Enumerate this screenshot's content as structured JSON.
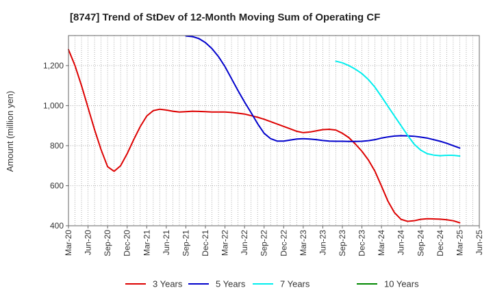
{
  "chart_data": {
    "type": "line",
    "title": "[8747]  Trend of StDev of 12-Month Moving Sum of Operating CF",
    "ylabel": "Amount (million yen)",
    "xlabel": "",
    "ylim": [
      400,
      1350
    ],
    "yticks": [
      400,
      600,
      800,
      "1,000",
      "1,200"
    ],
    "ytick_values": [
      400,
      600,
      800,
      1000,
      1200
    ],
    "xticks": [
      "Mar-20",
      "Jun-20",
      "Sep-20",
      "Dec-20",
      "Mar-21",
      "Jun-21",
      "Sep-21",
      "Dec-21",
      "Mar-22",
      "Jun-22",
      "Sep-22",
      "Dec-22",
      "Mar-23",
      "Jun-23",
      "Sep-23",
      "Dec-23",
      "Mar-24",
      "Jun-24",
      "Sep-24",
      "Dec-24",
      "Mar-25",
      "Jun-25"
    ],
    "grid": true,
    "legend_position": "bottom",
    "series": [
      {
        "name": "3 Years",
        "color": "#dd0000",
        "points": [
          [
            "Mar-20",
            1280
          ],
          [
            "Apr-20",
            1200
          ],
          [
            "May-20",
            1100
          ],
          [
            "Jun-20",
            990
          ],
          [
            "Jul-20",
            880
          ],
          [
            "Aug-20",
            780
          ],
          [
            "Sep-20",
            695
          ],
          [
            "Oct-20",
            672
          ],
          [
            "Nov-20",
            700
          ],
          [
            "Dec-20",
            760
          ],
          [
            "Jan-21",
            830
          ],
          [
            "Feb-21",
            895
          ],
          [
            "Mar-21",
            948
          ],
          [
            "Apr-21",
            975
          ],
          [
            "May-21",
            982
          ],
          [
            "Jun-21",
            978
          ],
          [
            "Jul-21",
            972
          ],
          [
            "Aug-21",
            968
          ],
          [
            "Sep-21",
            970
          ],
          [
            "Oct-21",
            972
          ],
          [
            "Nov-21",
            971
          ],
          [
            "Dec-21",
            970
          ],
          [
            "Jan-22",
            968
          ],
          [
            "Feb-22",
            968
          ],
          [
            "Mar-22",
            968
          ],
          [
            "Apr-22",
            966
          ],
          [
            "May-22",
            962
          ],
          [
            "Jun-22",
            958
          ],
          [
            "Jul-22",
            950
          ],
          [
            "Aug-22",
            942
          ],
          [
            "Sep-22",
            932
          ],
          [
            "Oct-22",
            920
          ],
          [
            "Nov-22",
            908
          ],
          [
            "Dec-22",
            896
          ],
          [
            "Jan-23",
            884
          ],
          [
            "Feb-23",
            872
          ],
          [
            "Mar-23",
            865
          ],
          [
            "Apr-23",
            868
          ],
          [
            "May-23",
            874
          ],
          [
            "Jun-23",
            880
          ],
          [
            "Jul-23",
            882
          ],
          [
            "Aug-23",
            878
          ],
          [
            "Sep-23",
            862
          ],
          [
            "Oct-23",
            840
          ],
          [
            "Nov-23",
            808
          ],
          [
            "Dec-23",
            772
          ],
          [
            "Jan-24",
            728
          ],
          [
            "Feb-24",
            672
          ],
          [
            "Mar-24",
            598
          ],
          [
            "Apr-24",
            522
          ],
          [
            "May-24",
            465
          ],
          [
            "Jun-24",
            432
          ],
          [
            "Jul-24",
            422
          ],
          [
            "Aug-24",
            425
          ],
          [
            "Sep-24",
            432
          ],
          [
            "Oct-24",
            435
          ],
          [
            "Nov-24",
            434
          ],
          [
            "Dec-24",
            433
          ],
          [
            "Jan-25",
            430
          ],
          [
            "Feb-25",
            425
          ],
          [
            "Mar-25",
            415
          ]
        ]
      },
      {
        "name": "5 Years",
        "color": "#0000cc",
        "points": [
          [
            "Sep-21",
            1348
          ],
          [
            "Oct-21",
            1345
          ],
          [
            "Nov-21",
            1335
          ],
          [
            "Dec-21",
            1315
          ],
          [
            "Jan-22",
            1285
          ],
          [
            "Feb-22",
            1245
          ],
          [
            "Mar-22",
            1195
          ],
          [
            "Apr-22",
            1135
          ],
          [
            "May-22",
            1075
          ],
          [
            "Jun-22",
            1018
          ],
          [
            "Jul-22",
            965
          ],
          [
            "Aug-22",
            910
          ],
          [
            "Sep-22",
            862
          ],
          [
            "Oct-22",
            835
          ],
          [
            "Nov-22",
            823
          ],
          [
            "Dec-22",
            823
          ],
          [
            "Jan-23",
            828
          ],
          [
            "Feb-23",
            833
          ],
          [
            "Mar-23",
            835
          ],
          [
            "Apr-23",
            833
          ],
          [
            "May-23",
            830
          ],
          [
            "Jun-23",
            826
          ],
          [
            "Jul-23",
            823
          ],
          [
            "Aug-23",
            822
          ],
          [
            "Sep-23",
            822
          ],
          [
            "Oct-23",
            821
          ],
          [
            "Nov-23",
            821
          ],
          [
            "Dec-23",
            822
          ],
          [
            "Jan-24",
            825
          ],
          [
            "Feb-24",
            830
          ],
          [
            "Mar-24",
            838
          ],
          [
            "Apr-24",
            844
          ],
          [
            "May-24",
            848
          ],
          [
            "Jun-24",
            850
          ],
          [
            "Jul-24",
            849
          ],
          [
            "Aug-24",
            847
          ],
          [
            "Sep-24",
            843
          ],
          [
            "Oct-24",
            838
          ],
          [
            "Nov-24",
            830
          ],
          [
            "Dec-24",
            822
          ],
          [
            "Jan-25",
            812
          ],
          [
            "Feb-25",
            800
          ],
          [
            "Mar-25",
            788
          ]
        ]
      },
      {
        "name": "7 Years",
        "color": "#00eeee",
        "points": [
          [
            "Aug-23",
            1222
          ],
          [
            "Sep-23",
            1214
          ],
          [
            "Oct-23",
            1200
          ],
          [
            "Nov-23",
            1182
          ],
          [
            "Dec-23",
            1160
          ],
          [
            "Jan-24",
            1130
          ],
          [
            "Feb-24",
            1092
          ],
          [
            "Mar-24",
            1045
          ],
          [
            "Apr-24",
            996
          ],
          [
            "May-24",
            948
          ],
          [
            "Jun-24",
            900
          ],
          [
            "Jul-24",
            852
          ],
          [
            "Aug-24",
            808
          ],
          [
            "Sep-24",
            778
          ],
          [
            "Oct-24",
            760
          ],
          [
            "Nov-24",
            753
          ],
          [
            "Dec-24",
            750
          ],
          [
            "Jan-25",
            752
          ],
          [
            "Feb-25",
            752
          ],
          [
            "Mar-25",
            748
          ]
        ]
      },
      {
        "name": "10 Years",
        "color": "#008800",
        "points": []
      }
    ]
  }
}
